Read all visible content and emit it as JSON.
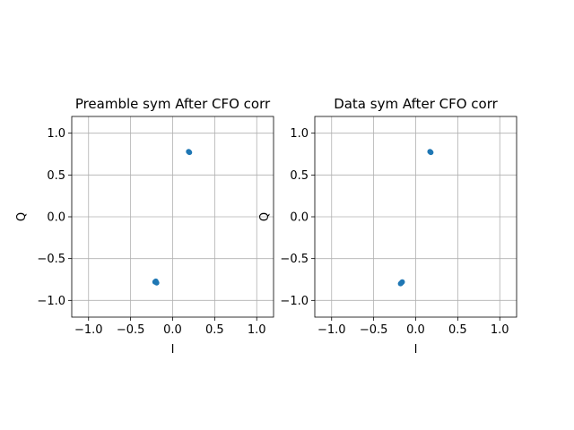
{
  "chart_data": [
    {
      "type": "scatter",
      "title": "Preamble sym After CFO corr",
      "xlabel": "I",
      "ylabel": "Q",
      "xlim": [
        -1.2,
        1.2
      ],
      "ylim": [
        -1.2,
        1.2
      ],
      "xticks": [
        -1.0,
        -0.5,
        0.0,
        0.5,
        1.0
      ],
      "yticks": [
        -1.0,
        -0.5,
        0.0,
        0.5,
        1.0
      ],
      "xtick_labels": [
        "−1.0",
        "−0.5",
        "0.0",
        "0.5",
        "1.0"
      ],
      "ytick_labels": [
        "−1.0",
        "−0.5",
        "0.0",
        "0.5",
        "1.0"
      ],
      "grid": true,
      "color": "#1f77b4",
      "points": [
        {
          "x": 0.19,
          "y": 0.78
        },
        {
          "x": 0.2,
          "y": 0.77
        },
        {
          "x": -0.21,
          "y": -0.78
        },
        {
          "x": -0.19,
          "y": -0.79
        },
        {
          "x": -0.2,
          "y": -0.77
        }
      ]
    },
    {
      "type": "scatter",
      "title": "Data sym After CFO corr",
      "xlabel": "I",
      "ylabel": "Q",
      "xlim": [
        -1.2,
        1.2
      ],
      "ylim": [
        -1.2,
        1.2
      ],
      "xticks": [
        -1.0,
        -0.5,
        0.0,
        0.5,
        1.0
      ],
      "yticks": [
        -1.0,
        -0.5,
        0.0,
        0.5,
        1.0
      ],
      "xtick_labels": [
        "−1.0",
        "−0.5",
        "0.0",
        "0.5",
        "1.0"
      ],
      "ytick_labels": [
        "−1.0",
        "−0.5",
        "0.0",
        "0.5",
        "1.0"
      ],
      "grid": true,
      "color": "#1f77b4",
      "points": [
        {
          "x": 0.17,
          "y": 0.78
        },
        {
          "x": 0.18,
          "y": 0.77
        },
        {
          "x": -0.17,
          "y": -0.79
        },
        {
          "x": -0.16,
          "y": -0.78
        },
        {
          "x": -0.18,
          "y": -0.8
        }
      ]
    }
  ]
}
